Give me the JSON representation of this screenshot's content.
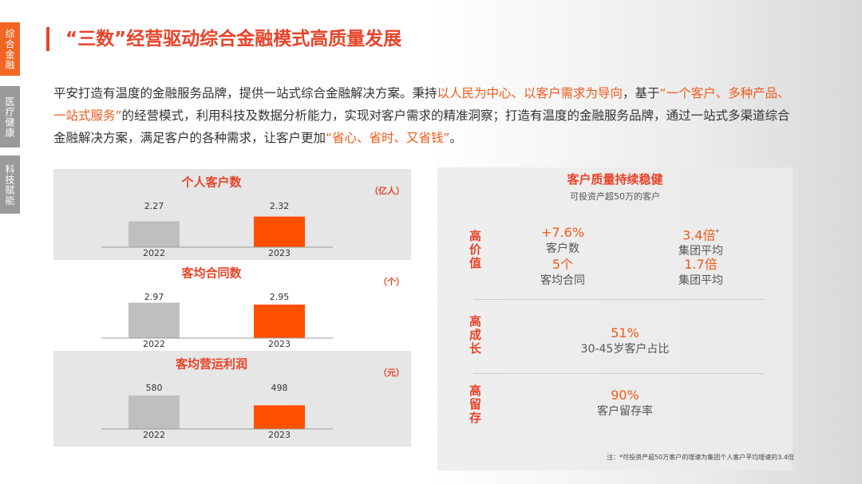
{
  "sidebar": [
    "综合金融",
    "医疗健康",
    "科技赋能"
  ],
  "title": "“三数”经营驱动综合金融模式高质量发展",
  "intro": [
    {
      "text": "平安打造有温度的金融服务品牌，提供一站式综合金融解决方案。秉持",
      "color": "#333333"
    },
    {
      "text": "以人民为中心、以客户需求为导向",
      "color": "#f05a1a"
    },
    {
      "text": "，基于",
      "color": "#333333"
    },
    {
      "text": "“一个客户、多种产品、一站式服务”",
      "color": "#f05a1a"
    },
    {
      "text": "的经营模式，利用科技及数据分析能力，实现对客户需求的精准洞察；打造有温度的金融服务品牌，通过一站式多渠道综合金融解决方案，满足客户的各种需求，让客户更加",
      "color": "#333333"
    },
    {
      "text": "“省心、省时、又省钱”",
      "color": "#f05a1a"
    },
    {
      "text": "。",
      "color": "#333333"
    }
  ],
  "chart_data": [
    {
      "type": "bar",
      "title": "个人客户数",
      "unit": "（亿人）",
      "categories": [
        "2022",
        "2023"
      ],
      "values": [
        2.27,
        2.32
      ],
      "colors": [
        "#bfbfbf",
        "#ff4f00"
      ],
      "ylim": [
        2.0,
        2.5
      ]
    },
    {
      "type": "bar",
      "title": "客均合同数",
      "unit": "（个）",
      "categories": [
        "2022",
        "2023"
      ],
      "values": [
        2.97,
        2.95
      ],
      "colors": [
        "#bfbfbf",
        "#ff4f00"
      ],
      "ylim": [
        2.6,
        3.1
      ]
    },
    {
      "type": "bar",
      "title": "客均营运利润",
      "unit": "（元）",
      "categories": [
        "2022",
        "2023"
      ],
      "values": [
        580,
        498
      ],
      "colors": [
        "#bfbfbf",
        "#ff4f00"
      ],
      "ylim": [
        300,
        700
      ]
    }
  ],
  "quality": {
    "title": "客户质量持续稳健",
    "subtitle": "可投资产超50万的客户",
    "rows": [
      {
        "label": "高价值",
        "items": [
          {
            "value": "+7.6%",
            "caption": "客户数"
          },
          {
            "value": "3.4倍",
            "mark": "*",
            "caption": "集团平均"
          },
          {
            "value": "5个",
            "caption": "客均合同"
          },
          {
            "value": "1.7倍",
            "caption": "集团平均"
          }
        ]
      },
      {
        "label": "高成长",
        "items": [
          {
            "value": "51%",
            "caption": "30-45岁客户占比"
          }
        ]
      },
      {
        "label": "高留存",
        "items": [
          {
            "value": "90%",
            "caption": "客户留存率"
          }
        ]
      }
    ],
    "note": "注：*可投资产超50万客户的增速为集团个人客户平均增速的3.4倍"
  }
}
